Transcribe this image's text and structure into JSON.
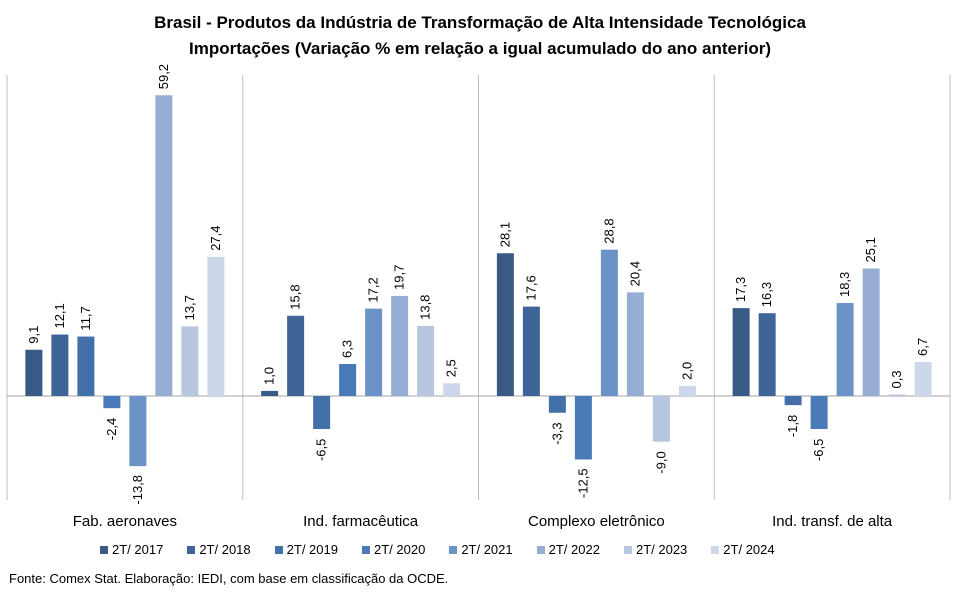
{
  "title_line1": "Brasil - Produtos da Indústria de Transformação de Alta Intensidade Tecnológica",
  "title_line2": "Importações (Variação % em relação a igual acumulado do ano anterior)",
  "source": "Fonte: Comex Stat. Elaboração: IEDI, com base em classificação da OCDE.",
  "chart_data": {
    "type": "bar",
    "categories": [
      "Fab. aeronaves",
      "Ind. farmacêutica",
      "Complexo eletrônico",
      "Ind. transf. de alta"
    ],
    "series": [
      {
        "name": "2T/ 2017",
        "color": "#3a5a86",
        "values": [
          9.1,
          1.0,
          28.1,
          17.3
        ]
      },
      {
        "name": "2T/ 2018",
        "color": "#3f6497",
        "values": [
          12.1,
          15.8,
          17.6,
          16.3
        ]
      },
      {
        "name": "2T/ 2019",
        "color": "#4370a8",
        "values": [
          11.7,
          -6.5,
          -3.3,
          -1.8
        ]
      },
      {
        "name": "2T/ 2020",
        "color": "#4a7bb8",
        "values": [
          -2.4,
          6.3,
          -12.5,
          -6.5
        ]
      },
      {
        "name": "2T/ 2021",
        "color": "#6b93c8",
        "values": [
          -13.8,
          17.2,
          28.8,
          18.3
        ]
      },
      {
        "name": "2T/ 2022",
        "color": "#97aed4",
        "values": [
          59.2,
          19.7,
          20.4,
          25.1
        ]
      },
      {
        "name": "2T/ 2023",
        "color": "#b9c6e0",
        "values": [
          13.7,
          13.8,
          -9.0,
          0.3
        ]
      },
      {
        "name": "2T/ 2024",
        "color": "#cdd7ea",
        "values": [
          27.4,
          2.5,
          2.0,
          6.7
        ]
      }
    ],
    "value_labels": [
      [
        "9,1",
        "1,0",
        "28,1",
        "17,3"
      ],
      [
        "12,1",
        "15,8",
        "17,6",
        "16,3"
      ],
      [
        "11,7",
        "-6,5",
        "-3,3",
        "-1,8"
      ],
      [
        "-2,4",
        "6,3",
        "-12,5",
        "-6,5"
      ],
      [
        "-13,8",
        "17,2",
        "28,8",
        "18,3"
      ],
      [
        "59,2",
        "19,7",
        "20,4",
        "25,1"
      ],
      [
        "13,7",
        "13,8",
        "-9,0",
        "0,3"
      ],
      [
        "27,4",
        "2,5",
        "2,0",
        "6,7"
      ]
    ],
    "legend_position": "bottom",
    "grid": false
  }
}
